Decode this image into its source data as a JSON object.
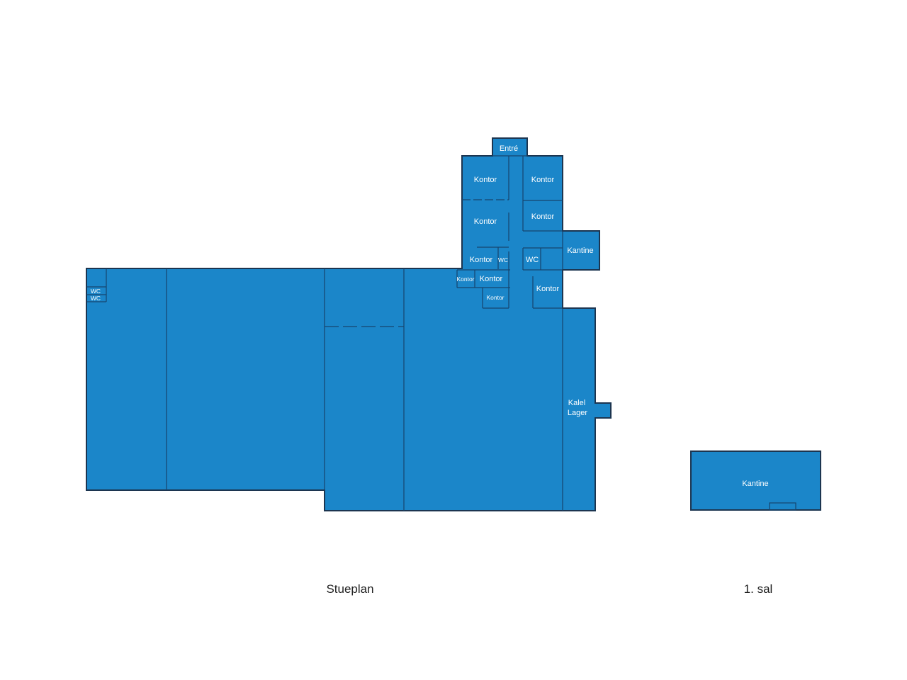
{
  "colors": {
    "room_fill": "#1b86c9",
    "outline": "#1c3550"
  },
  "floors": [
    {
      "name": "Stueplan",
      "rooms": [
        "Entré",
        "Kontor",
        "Kontor",
        "Kontor",
        "Kontor",
        "Kontor",
        "WC",
        "WC",
        "Kantine",
        "Kontor",
        "Kontor",
        "Kontor",
        "Kontor",
        "WC",
        "WC",
        "Kalel",
        "Lager"
      ]
    },
    {
      "name": "1. sal",
      "rooms": [
        "Kantine"
      ]
    }
  ]
}
